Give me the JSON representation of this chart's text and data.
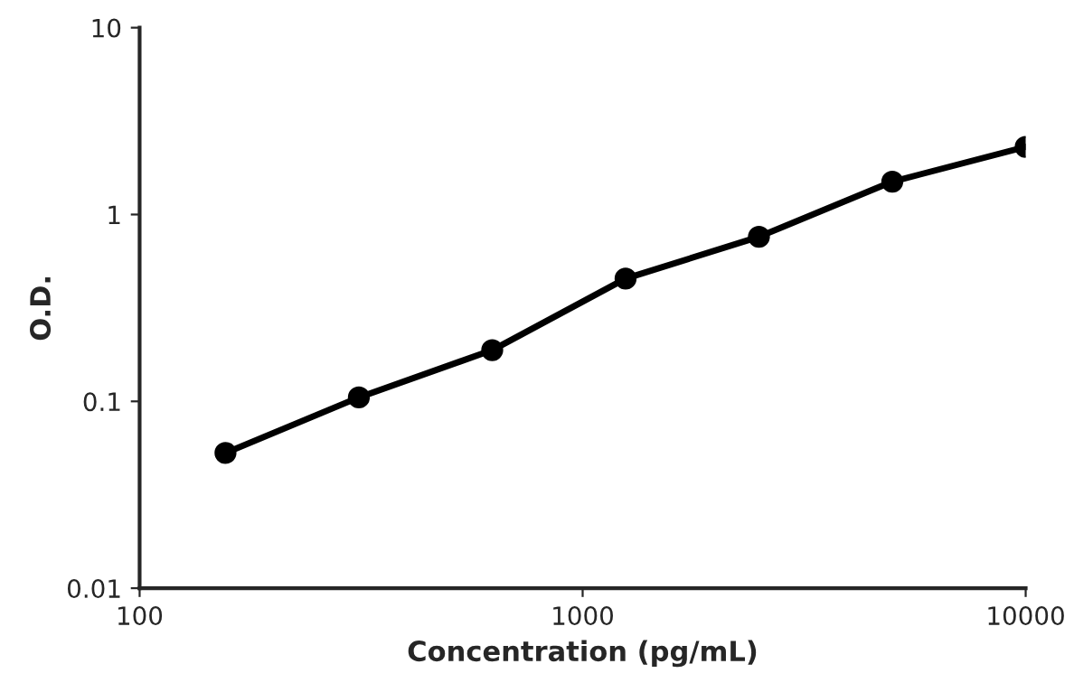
{
  "chart_data": {
    "type": "line",
    "xlabel": "Concentration (pg/mL)",
    "ylabel": "O.D.",
    "x": [
      156.25,
      312.5,
      625,
      1250,
      2500,
      5000,
      10000
    ],
    "series": [
      {
        "color": "#000000",
        "values": [
          0.053,
          0.105,
          0.188,
          0.454,
          0.76,
          1.5,
          2.3
        ]
      }
    ],
    "log": "xy",
    "xlim": [
      100,
      10000
    ],
    "ylim": [
      0.01,
      10
    ],
    "xticks": [
      100,
      1000,
      10000
    ],
    "yticks": [
      0.01,
      0.1,
      1,
      10
    ],
    "grid": false,
    "legend": false,
    "marker": "circle",
    "line_style": "solid"
  }
}
